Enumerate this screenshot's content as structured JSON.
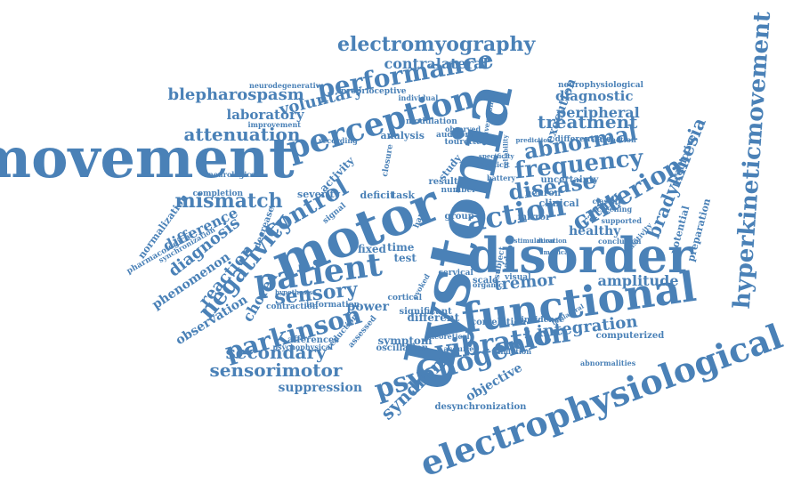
{
  "word_color": "#4a81b7",
  "background": "#ffffff",
  "words": [
    "movement",
    "dystonia",
    "disorder",
    "functional",
    "electrophysiological",
    "motor",
    "perception",
    "performance",
    "electromyography",
    "patient",
    "action",
    "vibration",
    "psychogenic",
    "hyperkineticmovement",
    "parkinson",
    "negativity",
    "criterion",
    "abnormal",
    "frequency",
    "disease",
    "bradykinesia",
    "mismatch",
    "control",
    "treatment",
    "sensory",
    "blepharospasm",
    "syndrome",
    "sensorimotor",
    "secondary",
    "integration",
    "tremor",
    "attenuation",
    "contralateral",
    "voluntary",
    "amplitude",
    "diagnosis",
    "difference",
    "reaction",
    "laboratory",
    "suppression",
    "observation",
    "chorea",
    "phenomenon",
    "execution",
    "diagnostic",
    "peripheral",
    "healthy",
    "rating",
    "power",
    "symptom",
    "objective",
    "computerized",
    "desynchronization",
    "neurophysiological",
    "neurodegenerative",
    "proprioceptive",
    "contraction",
    "information",
    "normalization",
    "pharmacological",
    "synchronization",
    "completion",
    "severity",
    "deficit",
    "task",
    "activity",
    "potential",
    "preparation",
    "predictive",
    "uncertainty",
    "clinical",
    "neuron",
    "mirror",
    "analysis",
    "modulation",
    "auditory",
    "tourette",
    "recording",
    "improvement",
    "time",
    "fixed",
    "test",
    "result",
    "different",
    "significant",
    "correlation",
    "incidence",
    "oscillation",
    "afferences",
    "psychophysical",
    "abnormalities",
    "supported",
    "cervical",
    "scale",
    "study",
    "group",
    "number",
    "differentiate",
    "interaction",
    "screening",
    "classify",
    "video",
    "subject",
    "observed",
    "individual",
    "decrease",
    "signal",
    "neurological",
    "closure",
    "validation",
    "acquired",
    "theoretical",
    "cortical",
    "reduction",
    "assessed",
    "hand",
    "visual",
    "explicit",
    "battery",
    "reliability",
    "specificity",
    "prediction",
    "evoked",
    "organic",
    "hypothesis",
    "conclusion",
    "sensitivity",
    "conventional",
    "stimulation",
    "duration",
    "medical",
    "ipsilateral"
  ]
}
